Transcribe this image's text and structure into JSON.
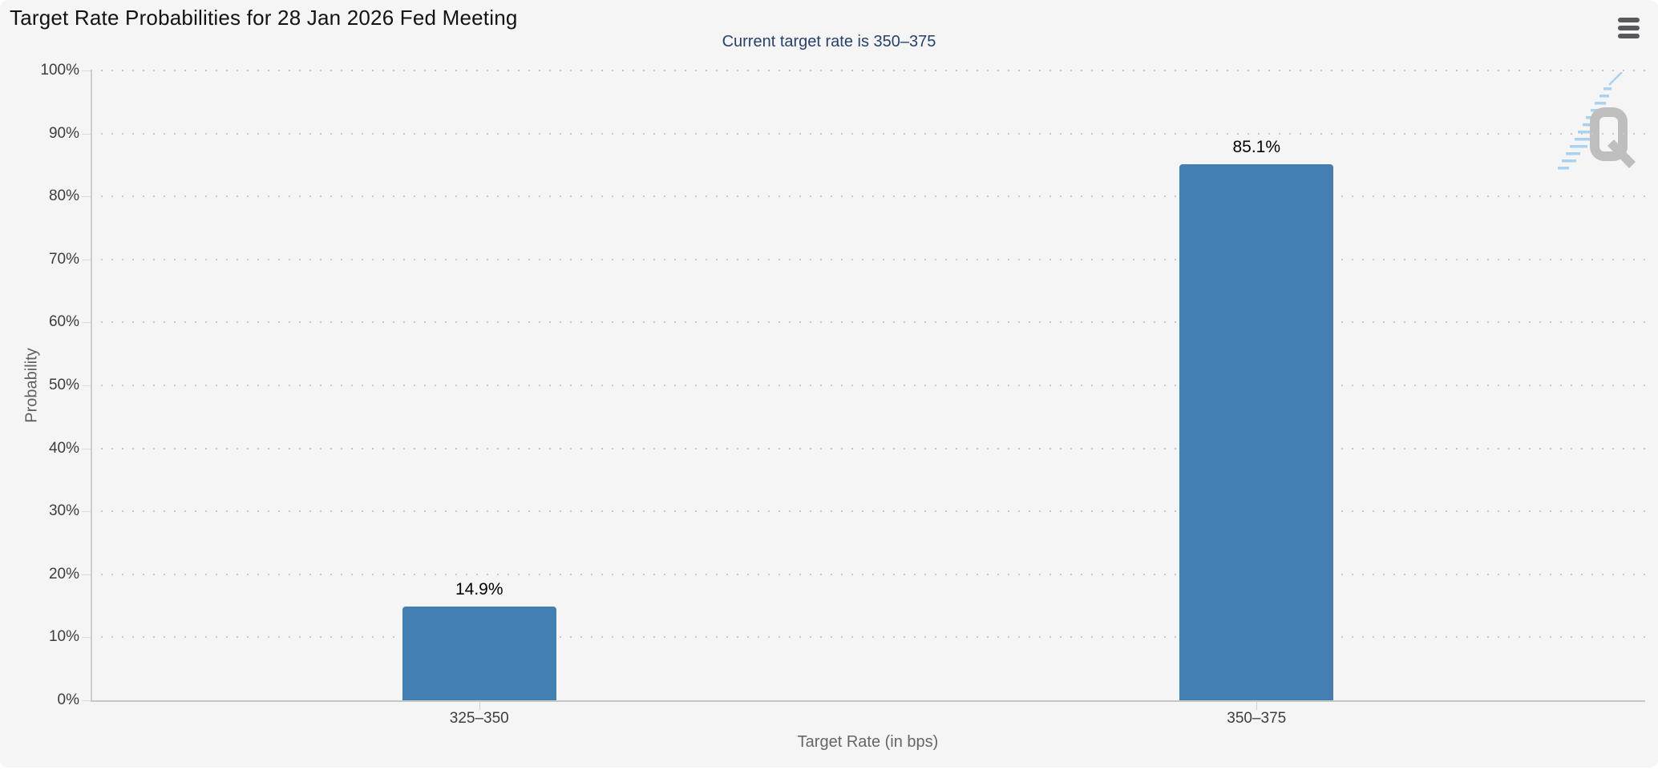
{
  "header": {
    "title": "Target Rate Probabilities for 28 Jan 2026 Fed Meeting",
    "subtitle": "Current target rate is 350–375",
    "menu_icon": "hamburger-menu-icon"
  },
  "watermark": {
    "icon": "quikstrike-q-logo",
    "letter": "Q"
  },
  "colors": {
    "panel_background": "#f5f5f6",
    "bar": "#447fb3",
    "subtitle_text": "#26426b",
    "title_text": "#131313",
    "axis_line": "#c6c6c6",
    "grid_dot": "#c9c9c9",
    "tick_label_text": "#3d3d3d",
    "axis_title_text": "#666666",
    "value_label_text": "#000000",
    "menu_icon": "#59595b",
    "watermark_q": "#bebebe",
    "watermark_dash": "#a8d2f0"
  },
  "chart_data": {
    "type": "bar",
    "title": "Target Rate Probabilities for 28 Jan 2026 Fed Meeting",
    "subtitle": "Current target rate is 350–375",
    "categories": [
      "325–350",
      "350–375"
    ],
    "values": [
      14.9,
      85.1
    ],
    "value_labels": [
      "14.9%",
      "85.1%"
    ],
    "xlabel": "Target Rate (in bps)",
    "ylabel": "Probability",
    "ylim": [
      0,
      100
    ],
    "ytick_step": 10,
    "ytick_labels": [
      "0%",
      "10%",
      "20%",
      "30%",
      "40%",
      "50%",
      "60%",
      "70%",
      "80%",
      "90%",
      "100%"
    ],
    "grid": "horizontal-dotted",
    "legend": "none"
  }
}
